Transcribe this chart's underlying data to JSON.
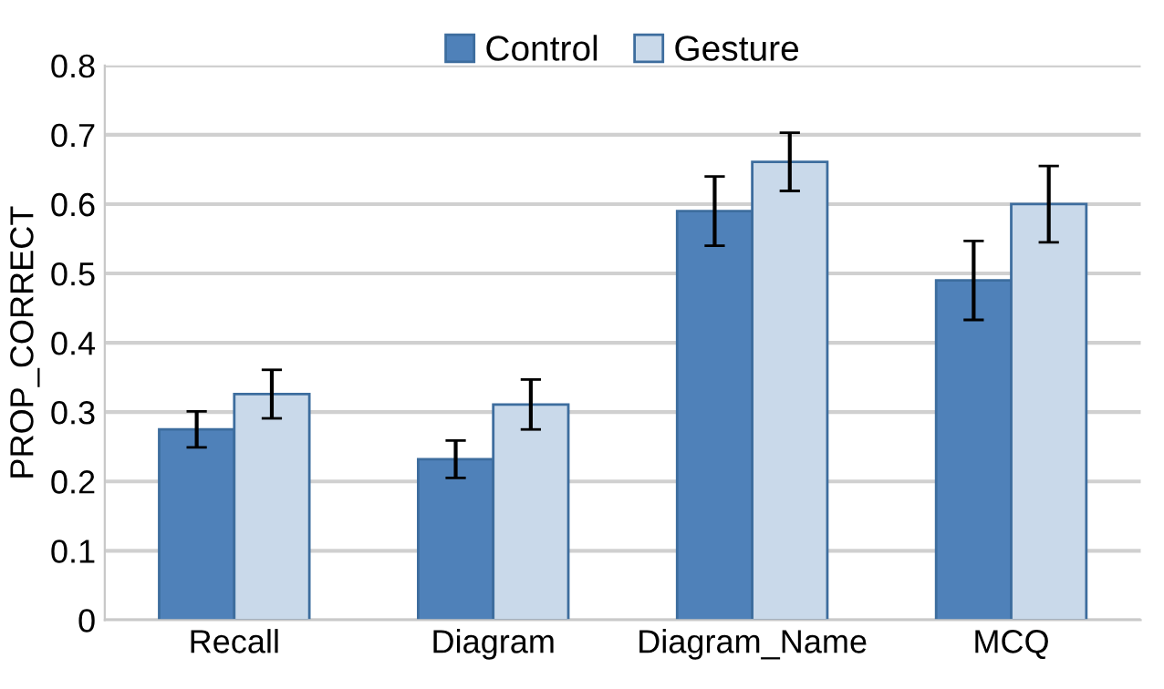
{
  "chart_data": {
    "type": "bar",
    "ylabel": "PROP_CORRECT",
    "categories": [
      "Recall",
      "Diagram",
      "Diagram_Name",
      "MCQ"
    ],
    "series": [
      {
        "name": "Control",
        "color": "#4f81b9",
        "values": [
          0.275,
          0.232,
          0.59,
          0.49
        ],
        "errors": [
          0.026,
          0.027,
          0.05,
          0.057
        ]
      },
      {
        "name": "Gesture",
        "color": "#c9d9ea",
        "values": [
          0.326,
          0.311,
          0.661,
          0.6
        ],
        "errors": [
          0.035,
          0.036,
          0.042,
          0.055
        ]
      }
    ],
    "ylim": [
      0,
      0.8
    ],
    "yticks": [
      0,
      0.1,
      0.2,
      0.3,
      0.4,
      0.5,
      0.6,
      0.7,
      0.8
    ],
    "grid": "y",
    "legend": "top"
  }
}
